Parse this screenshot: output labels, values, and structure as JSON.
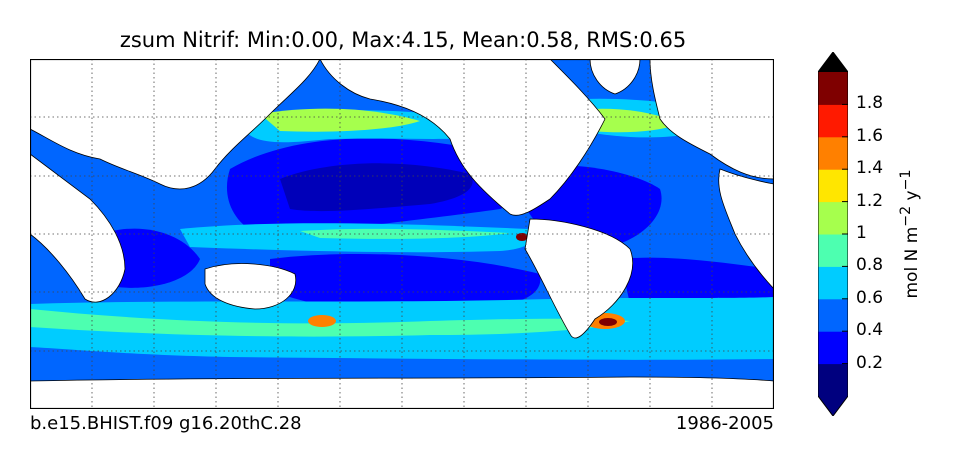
{
  "title": "zsum Nitrif: Min:0.00, Max:4.15, Mean:0.58, RMS:0.65",
  "footer": {
    "case_name": "b.e15.BHIST.f09 g16.20thC.28",
    "period": "1986-2005"
  },
  "colorbar": {
    "label_html": "mol N m<sup>−2</sup> y<sup>−1</sup>",
    "ticks": [
      "0.2",
      "0.4",
      "0.6",
      "0.8",
      "1",
      "1.2",
      "1.4",
      "1.6",
      "1.8"
    ],
    "bins": [
      {
        "min": 0.0,
        "max": 0.2,
        "color": "#00007f"
      },
      {
        "min": 0.2,
        "max": 0.4,
        "color": "#0000ff"
      },
      {
        "min": 0.4,
        "max": 0.6,
        "color": "#0066ff"
      },
      {
        "min": 0.6,
        "max": 0.8,
        "color": "#00ccff"
      },
      {
        "min": 0.8,
        "max": 1.0,
        "color": "#4dffb0"
      },
      {
        "min": 1.0,
        "max": 1.2,
        "color": "#a6ff4d"
      },
      {
        "min": 1.2,
        "max": 1.4,
        "color": "#ffe600"
      },
      {
        "min": 1.4,
        "max": 1.6,
        "color": "#ff8000"
      },
      {
        "min": 1.6,
        "max": 1.8,
        "color": "#ff1a00"
      },
      {
        "min": 1.8,
        "max": 2.0,
        "color": "#7f0000"
      }
    ],
    "extend_low_color": "#00007f",
    "extend_high_color": "#000000"
  },
  "map": {
    "land_color": "#ffffff",
    "gridlines": "dotted"
  }
}
